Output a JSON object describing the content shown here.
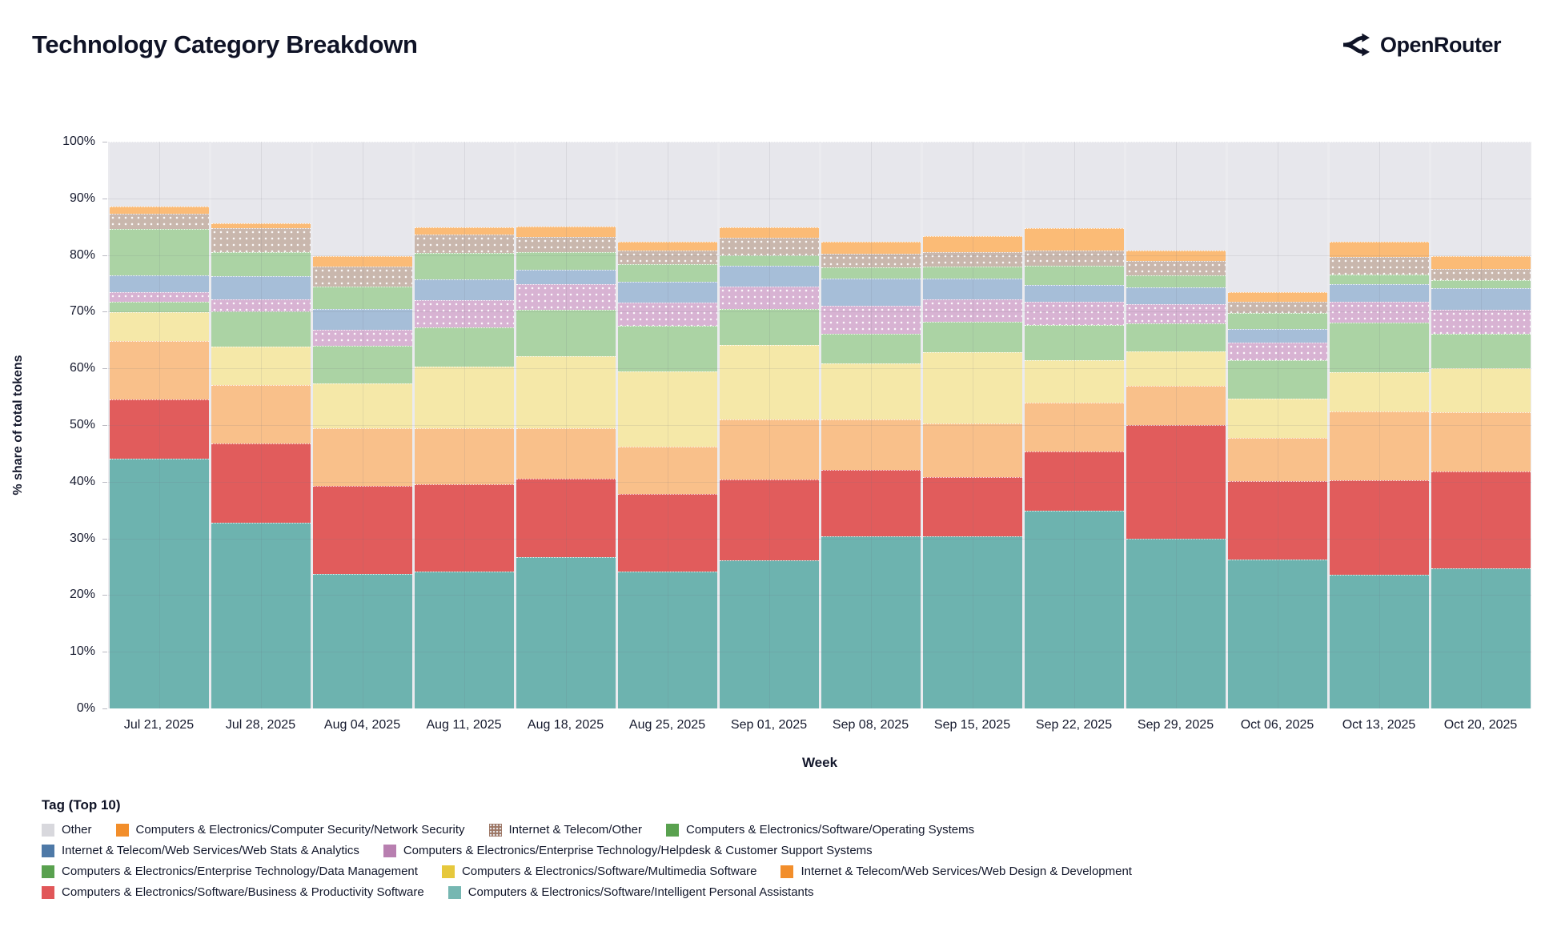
{
  "header": {
    "title": "Technology Category Breakdown",
    "brand": "OpenRouter"
  },
  "legend": {
    "title": "Tag (Top 10)",
    "rows": [
      [
        "other",
        "netsec",
        "telecom_other",
        "os"
      ],
      [
        "webstats",
        "helpdesk"
      ],
      [
        "datamgmt",
        "multimedia",
        "webdesign"
      ],
      [
        "bizprod",
        "ipa"
      ]
    ]
  },
  "chart_data": {
    "type": "bar",
    "stacked": true,
    "title": "Technology Category Breakdown",
    "xlabel": "Week",
    "ylabel": "% share of total tokens",
    "ylim": [
      0,
      100
    ],
    "grid": true,
    "legend_position": "bottom",
    "x": [
      "Jul 21, 2025",
      "Jul 28, 2025",
      "Aug 04, 2025",
      "Aug 11, 2025",
      "Aug 18, 2025",
      "Aug 25, 2025",
      "Sep 01, 2025",
      "Sep 08, 2025",
      "Sep 15, 2025",
      "Sep 22, 2025",
      "Sep 29, 2025",
      "Oct 06, 2025",
      "Oct 13, 2025",
      "Oct 20, 2025"
    ],
    "yticks": [
      "0%",
      "10%",
      "20%",
      "30%",
      "40%",
      "50%",
      "60%",
      "70%",
      "80%",
      "90%",
      "100%"
    ],
    "series": [
      {
        "key": "ipa",
        "name": "Computers & Electronics/Software/Intelligent Personal Assistants",
        "color": "#6db3af",
        "legend_color": "#76b7b2",
        "pattern": false,
        "values": [
          44.0,
          32.8,
          23.8,
          24.2,
          26.7,
          24.1,
          26.2,
          30.3,
          30.4,
          34.9,
          30.0,
          26.3,
          23.6,
          24.7
        ]
      },
      {
        "key": "bizprod",
        "name": "Computers & Electronics/Software/Business & Productivity Software",
        "color": "#e15c5c",
        "legend_color": "#e15759",
        "pattern": false,
        "values": [
          10.5,
          14.0,
          15.5,
          15.3,
          13.9,
          13.8,
          14.2,
          11.8,
          10.4,
          10.4,
          20.0,
          13.8,
          16.6,
          17.1
        ]
      },
      {
        "key": "webdesign",
        "name": "Internet & Telecom/Web Services/Web Design & Development",
        "color": "#f9c08a",
        "legend_color": "#f28e2b",
        "pattern": false,
        "values": [
          10.3,
          10.3,
          10.1,
          9.9,
          8.8,
          8.3,
          10.6,
          8.9,
          9.5,
          8.6,
          6.9,
          7.7,
          12.2,
          10.5
        ]
      },
      {
        "key": "multimedia",
        "name": "Computers & Electronics/Software/Multimedia Software",
        "color": "#f5e8a8",
        "legend_color": "#e6c83c",
        "pattern": false,
        "values": [
          5.1,
          6.7,
          7.9,
          10.9,
          12.7,
          13.3,
          13.1,
          9.9,
          12.5,
          7.6,
          6.1,
          6.8,
          6.9,
          7.7
        ]
      },
      {
        "key": "datamgmt",
        "name": "Computers & Electronics/Enterprise Technology/Data Management",
        "color": "#abd3a4",
        "legend_color": "#59a14f",
        "pattern": false,
        "values": [
          1.8,
          6.3,
          6.7,
          6.9,
          8.2,
          8.0,
          6.4,
          5.2,
          5.4,
          6.1,
          5.0,
          6.9,
          8.8,
          6.1
        ]
      },
      {
        "key": "helpdesk",
        "name": "Computers & Electronics/Enterprise Technology/Helpdesk & Customer Support Systems",
        "color": "#d8b3d3",
        "legend_color": "#b87fb0",
        "pattern": true,
        "legend_pattern": false,
        "values": [
          1.7,
          2.1,
          2.8,
          4.8,
          4.5,
          4.1,
          4.0,
          4.9,
          4.0,
          4.1,
          3.4,
          3.0,
          3.6,
          4.3
        ]
      },
      {
        "key": "webstats",
        "name": "Internet & Telecom/Web Services/Web Stats & Analytics",
        "color": "#a6bed8",
        "legend_color": "#4e79a7",
        "pattern": false,
        "values": [
          3.0,
          4.1,
          3.7,
          3.7,
          2.6,
          3.7,
          3.6,
          4.8,
          3.6,
          3.0,
          2.9,
          2.4,
          3.2,
          3.7
        ]
      },
      {
        "key": "os",
        "name": "Computers & Electronics/Software/Operating Systems",
        "color": "#abd3a4",
        "legend_color": "#59a14f",
        "pattern": false,
        "values": [
          8.2,
          4.2,
          3.9,
          4.7,
          3.1,
          3.1,
          1.9,
          2.0,
          2.2,
          3.4,
          2.1,
          2.9,
          1.6,
          1.5
        ]
      },
      {
        "key": "telecom_other",
        "name": "Internet & Telecom/Other",
        "color": "#c9b7ad",
        "legend_color": "#9c7563",
        "pattern": true,
        "legend_pattern": true,
        "values": [
          2.7,
          4.2,
          3.6,
          3.2,
          2.7,
          2.4,
          3.0,
          2.4,
          2.5,
          2.7,
          2.6,
          1.9,
          3.2,
          2.0
        ]
      },
      {
        "key": "netsec",
        "name": "Computers & Electronics/Computer Security/Network Security",
        "color": "#fbbb76",
        "legend_color": "#f28e2b",
        "pattern": false,
        "values": [
          1.3,
          0.9,
          1.8,
          1.3,
          1.8,
          1.6,
          1.9,
          2.2,
          2.8,
          3.9,
          1.8,
          1.7,
          2.7,
          2.2
        ]
      },
      {
        "key": "other",
        "name": "Other",
        "color": "#e7e7ec",
        "legend_color": "#d8d8dd",
        "pattern": false,
        "values": [
          11.4,
          14.4,
          20.2,
          15.1,
          15.0,
          17.6,
          15.1,
          17.6,
          16.7,
          15.3,
          19.2,
          26.6,
          17.6,
          20.2
        ]
      }
    ]
  }
}
